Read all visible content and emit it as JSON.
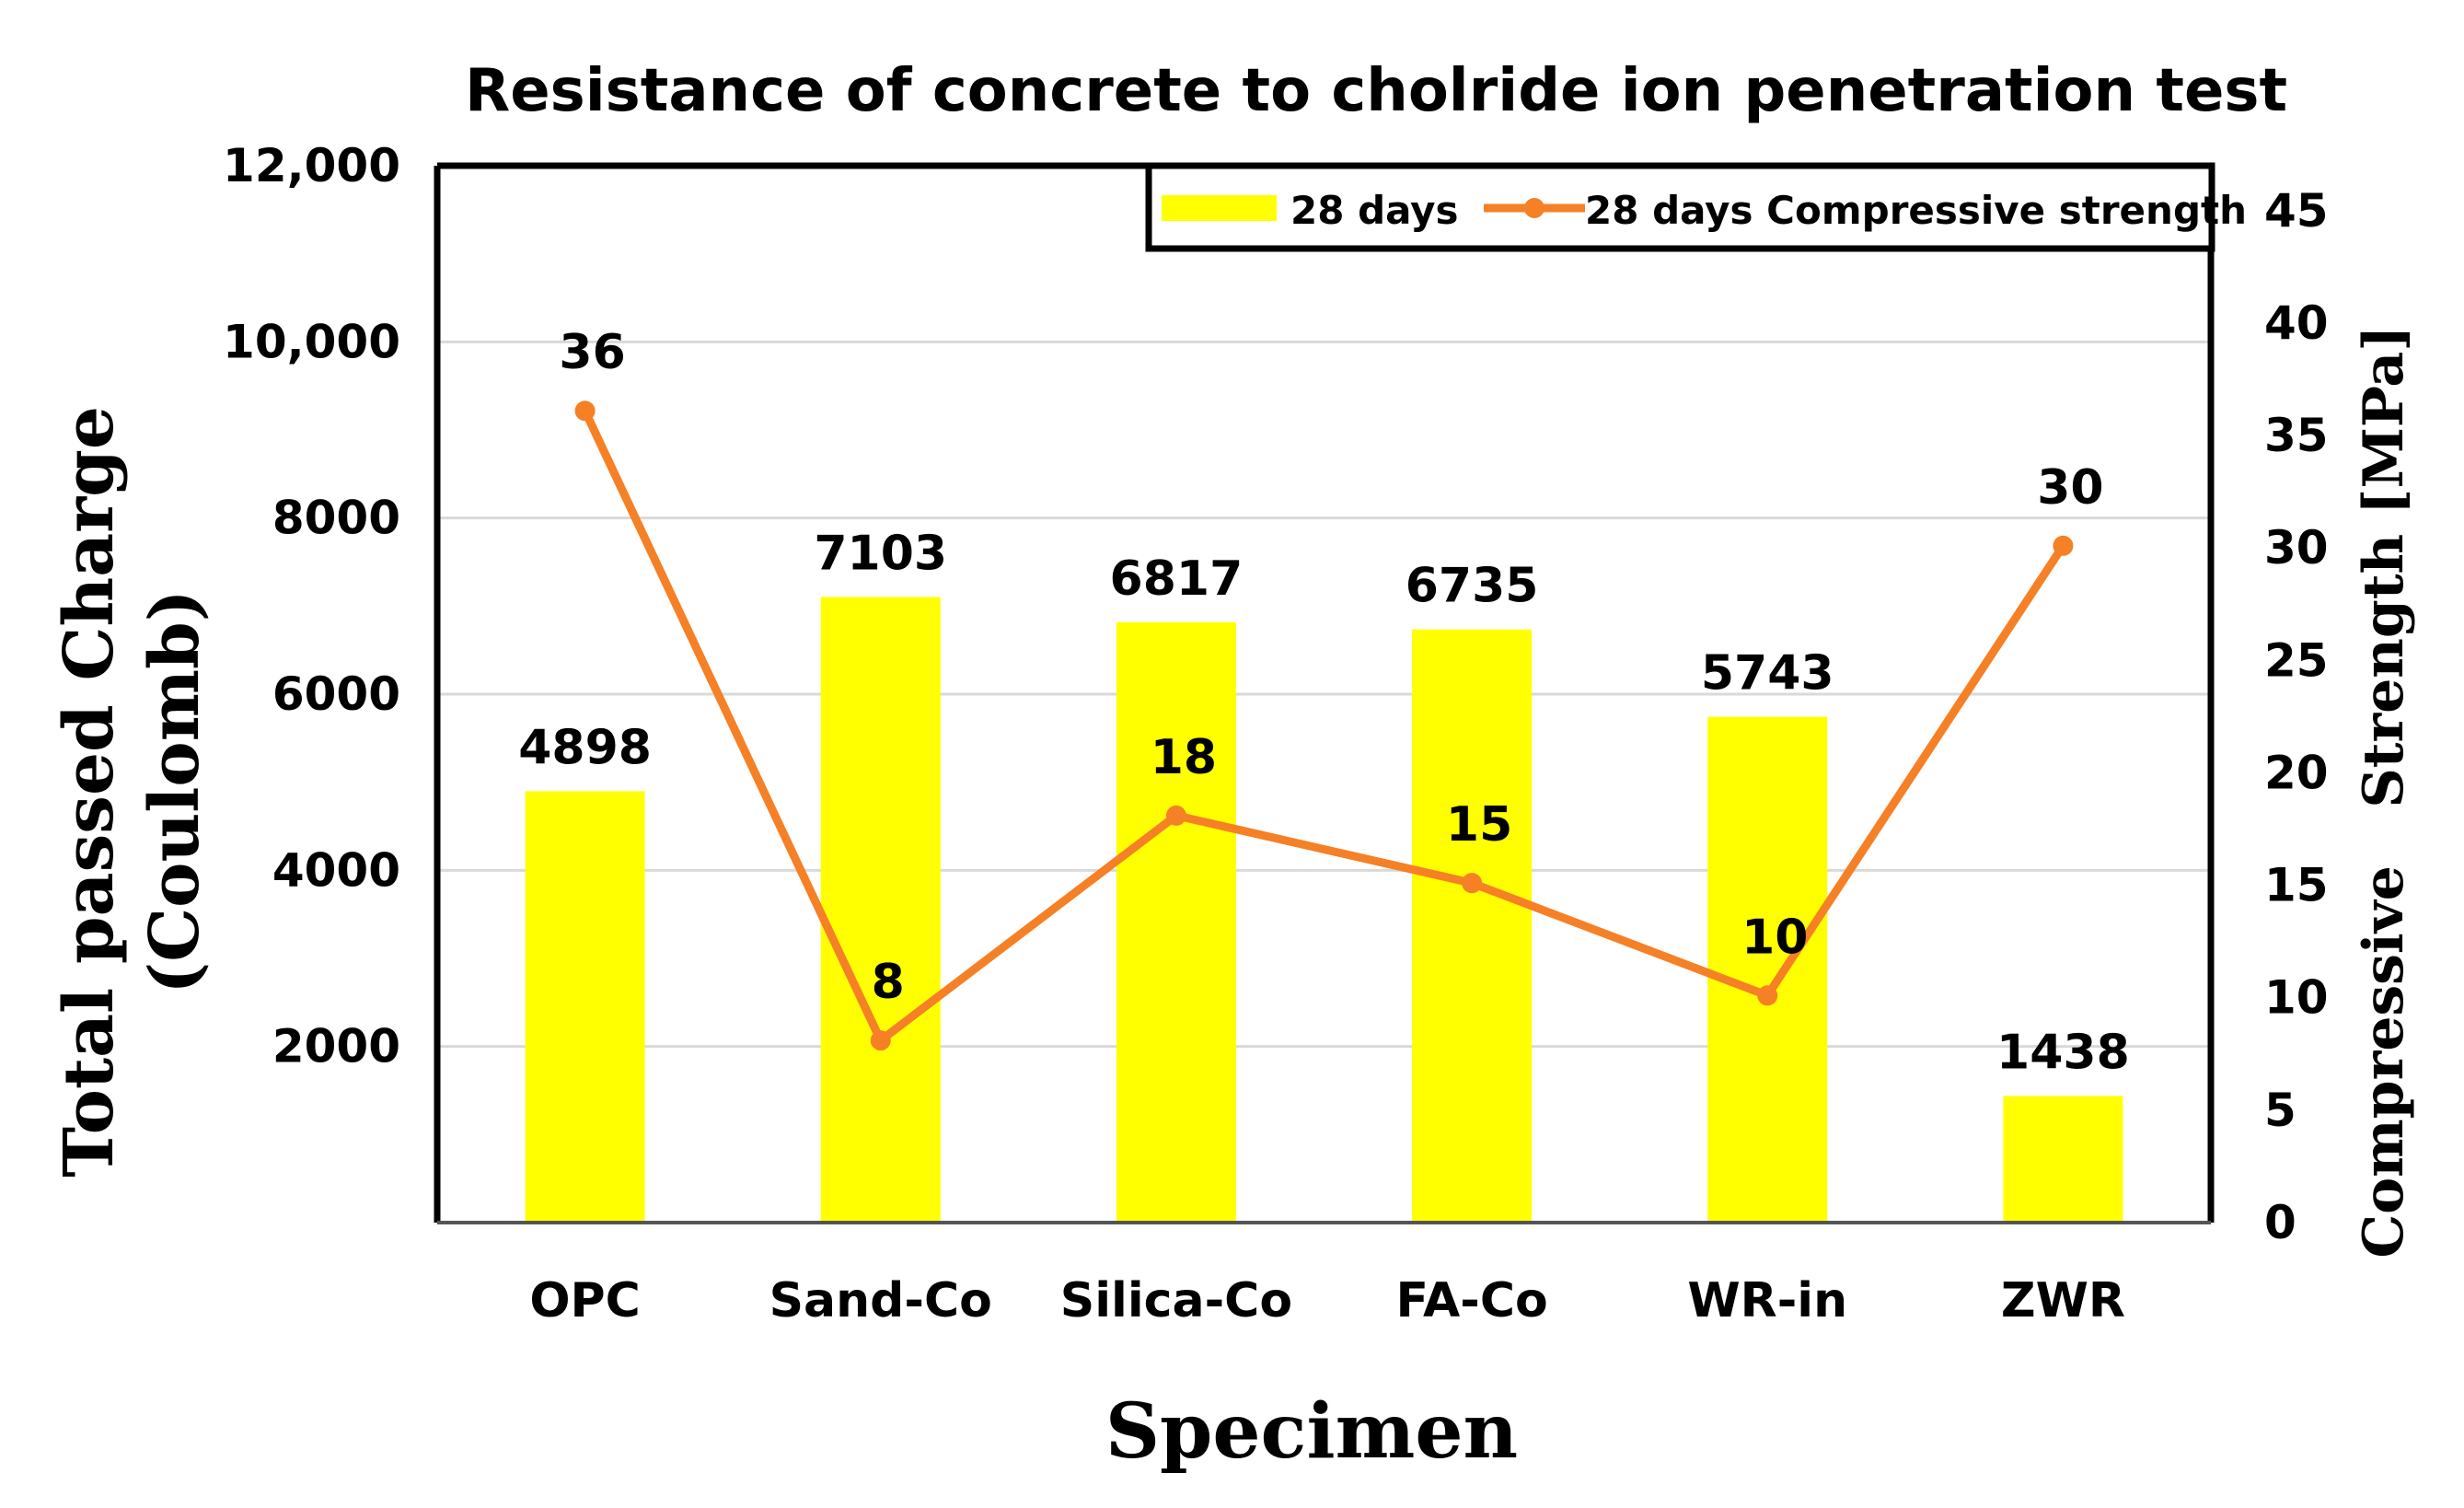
{
  "chart_data": {
    "type": "bar+line",
    "title": "Resistance of concrete to cholride ion penetration test",
    "xlabel": "Specimen",
    "ylabel_line1": "Total passed Charge",
    "ylabel_line2": "(Coulomb)",
    "y2label": "Compressive   Strength [MPa]",
    "categories": [
      "OPC",
      "Sand-Co",
      "Silica-Co",
      "FA-Co",
      "WR-in",
      "ZWR"
    ],
    "ylim": [
      0,
      12000
    ],
    "y_ticks": [
      {
        "value": 2000,
        "label": "2000"
      },
      {
        "value": 4000,
        "label": "4000"
      },
      {
        "value": 6000,
        "label": "6000"
      },
      {
        "value": 8000,
        "label": "8000"
      },
      {
        "value": 10000,
        "label": "10,000"
      },
      {
        "value": 12000,
        "label": "12,000"
      }
    ],
    "y2lim": [
      0,
      47
    ],
    "y2_ticks": [
      0,
      5,
      10,
      15,
      20,
      25,
      30,
      35,
      40,
      45
    ],
    "grid": true,
    "legend_position": "top-right",
    "series": [
      {
        "name": "28 days",
        "type": "bar",
        "axis": "left",
        "color": "#FFFF00",
        "values": [
          4898,
          7103,
          6817,
          6735,
          5743,
          1438
        ],
        "labels": [
          "4898",
          "7103",
          "6817",
          "6735",
          "5743",
          "1438"
        ]
      },
      {
        "name": "28 days Compressive strength",
        "type": "line",
        "axis": "right",
        "color": "#F58026",
        "values": [
          36.1,
          8.1,
          18.1,
          15.1,
          10.1,
          30.1
        ],
        "labels": [
          "36",
          "8",
          "18",
          "15",
          "10",
          "30"
        ]
      }
    ]
  }
}
